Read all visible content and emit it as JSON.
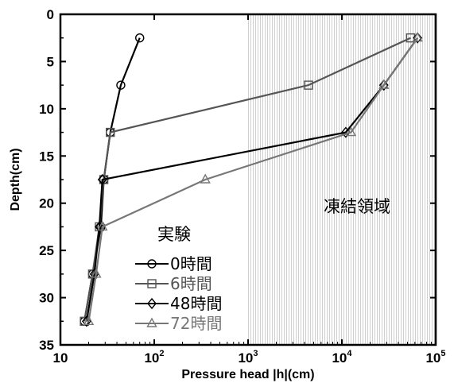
{
  "chart_data": {
    "type": "line",
    "title": "",
    "xlabel": "Pressure head |h|(cm)",
    "ylabel": "Depth(cm)",
    "xscale": "log",
    "xlim": [
      10,
      100000
    ],
    "ylim": [
      0,
      35
    ],
    "y_inverted": true,
    "grid": false,
    "x_ticks": [
      {
        "value": 10,
        "base": "10",
        "exp": ""
      },
      {
        "value": 100,
        "base": "10",
        "exp": "2"
      },
      {
        "value": 1000,
        "base": "10",
        "exp": "3"
      },
      {
        "value": 10000,
        "base": "10",
        "exp": "4"
      },
      {
        "value": 100000,
        "base": "10",
        "exp": "5"
      }
    ],
    "y_ticks": [
      "0",
      "5",
      "10",
      "15",
      "20",
      "25",
      "30",
      "35"
    ],
    "shaded_region": {
      "x_from": 1000,
      "x_to": 100000,
      "label": "凍結領域"
    },
    "legend_title": "実験",
    "legend_placement": "lower-left",
    "series": [
      {
        "name": "0時間",
        "marker": "circle",
        "color": "#000000",
        "points": [
          [
            70,
            2.5
          ],
          [
            44,
            7.5
          ],
          [
            34,
            12.5
          ],
          [
            29,
            17.5
          ],
          [
            27,
            22.5
          ],
          [
            22,
            27.5
          ],
          [
            18,
            32.5
          ]
        ]
      },
      {
        "name": "6時間",
        "marker": "square",
        "color": "#555555",
        "points": [
          [
            54000,
            2.5
          ],
          [
            4400,
            7.5
          ],
          [
            34,
            12.5
          ],
          [
            29,
            17.5
          ],
          [
            26,
            22.5
          ],
          [
            22,
            27.5
          ],
          [
            18,
            32.5
          ]
        ]
      },
      {
        "name": "48時間",
        "marker": "diamond",
        "color": "#000000",
        "points": [
          [
            64000,
            2.5
          ],
          [
            28000,
            7.5
          ],
          [
            11000,
            12.5
          ],
          [
            28,
            17.5
          ],
          [
            26,
            22.5
          ],
          [
            23,
            27.5
          ],
          [
            19,
            32.5
          ]
        ]
      },
      {
        "name": "72時間",
        "marker": "triangle",
        "color": "#777777",
        "points": [
          [
            64000,
            2.5
          ],
          [
            28000,
            7.5
          ],
          [
            12500,
            12.5
          ],
          [
            350,
            17.5
          ],
          [
            28,
            22.5
          ],
          [
            24,
            27.5
          ],
          [
            20,
            32.5
          ]
        ]
      }
    ]
  }
}
